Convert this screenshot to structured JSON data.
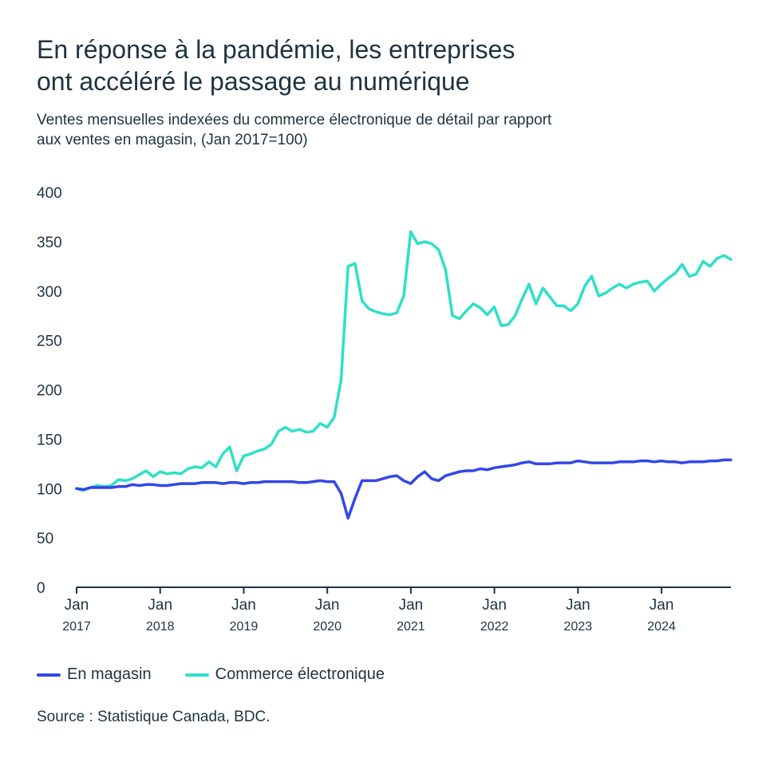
{
  "title_line1": "En réponse à la pandémie, les entreprises",
  "title_line2": "ont accéléré le passage au numérique",
  "subtitle_line1": "Ventes mensuelles indexées du commerce électronique de détail par rapport",
  "subtitle_line2": "aux ventes en magasin, (Jan  2017=100)",
  "source": "Source : Statistique Canada, BDC.",
  "colors": {
    "en_magasin": "#3347e6",
    "commerce_electronique": "#2ee0c8",
    "text": "#1f3340"
  },
  "chart_data": {
    "type": "line",
    "ylim": [
      0,
      400
    ],
    "yticks": [
      0,
      50,
      100,
      150,
      200,
      250,
      300,
      350,
      400
    ],
    "xlim": [
      2017.0,
      2024.83
    ],
    "xticks": [
      {
        "x": 2017,
        "label1": "Jan",
        "label2": "2017"
      },
      {
        "x": 2018,
        "label1": "Jan",
        "label2": "2018"
      },
      {
        "x": 2019,
        "label1": "Jan",
        "label2": "2019"
      },
      {
        "x": 2020,
        "label1": "Jan",
        "label2": "2020"
      },
      {
        "x": 2021,
        "label1": "Jan",
        "label2": "2021"
      },
      {
        "x": 2022,
        "label1": "Jan",
        "label2": "2022"
      },
      {
        "x": 2023,
        "label1": "Jan",
        "label2": "2023"
      },
      {
        "x": 2024,
        "label1": "Jan",
        "label2": "2024"
      }
    ],
    "legend_position": "bottom-left",
    "series": [
      {
        "name": "En magasin",
        "color": "#3347e6",
        "values": [
          100,
          99,
          101,
          101,
          101,
          101,
          102,
          102,
          104,
          103,
          104,
          104,
          103,
          103,
          104,
          105,
          105,
          105,
          106,
          106,
          106,
          105,
          106,
          106,
          105,
          106,
          106,
          107,
          107,
          107,
          107,
          107,
          106,
          106,
          107,
          108,
          107,
          107,
          95,
          70,
          90,
          108,
          108,
          108,
          110,
          112,
          113,
          108,
          105,
          112,
          117,
          110,
          108,
          113,
          115,
          117,
          118,
          118,
          120,
          119,
          121,
          122,
          123,
          124,
          126,
          127,
          125,
          125,
          125,
          126,
          126,
          126,
          128,
          127,
          126,
          126,
          126,
          126,
          127,
          127,
          127,
          128,
          128,
          127,
          128,
          127,
          127,
          126,
          127,
          127,
          127,
          128,
          128,
          129,
          129
        ]
      },
      {
        "name": "Commerce électronique",
        "color": "#2ee0c8",
        "values": [
          100,
          98,
          101,
          103,
          102,
          103,
          109,
          108,
          110,
          114,
          118,
          112,
          117,
          115,
          116,
          115,
          120,
          122,
          121,
          127,
          122,
          135,
          142,
          118,
          133,
          135,
          138,
          140,
          145,
          158,
          162,
          158,
          160,
          157,
          158,
          166,
          162,
          172,
          210,
          325,
          328,
          290,
          282,
          279,
          277,
          276,
          278,
          295,
          360,
          348,
          350,
          348,
          342,
          322,
          275,
          272,
          280,
          287,
          283,
          276,
          284,
          265,
          266,
          275,
          292,
          307,
          287,
          303,
          294,
          285,
          285,
          280,
          287,
          305,
          315,
          295,
          298,
          303,
          307,
          303,
          307,
          309,
          310,
          300,
          307,
          313,
          318,
          327,
          315,
          317,
          330,
          325,
          333,
          336,
          332
        ]
      }
    ]
  }
}
